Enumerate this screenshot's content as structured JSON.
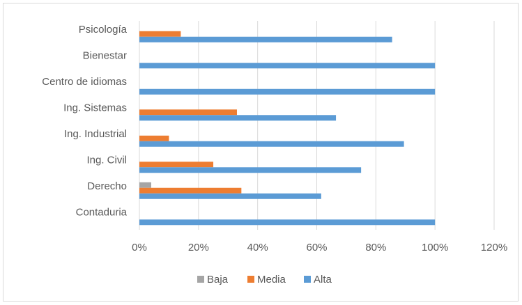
{
  "chart_data": {
    "type": "bar",
    "orientation": "horizontal",
    "categories": [
      "Psicología",
      "Bienestar",
      "Centro de idiomas",
      "Ing. Sistemas",
      "Ing. Industrial",
      "Ing. Civil",
      "Derecho",
      "Contaduria"
    ],
    "series": [
      {
        "name": "Baja",
        "color": "#a5a5a5",
        "values": [
          0,
          0,
          0,
          0,
          0,
          0,
          0.04,
          0
        ]
      },
      {
        "name": "Media",
        "color": "#ed7d31",
        "values": [
          0.14,
          0,
          0,
          0.33,
          0.1,
          0.25,
          0.345,
          0
        ]
      },
      {
        "name": "Alta",
        "color": "#5b9bd5",
        "values": [
          0.855,
          1.0,
          1.0,
          0.665,
          0.895,
          0.75,
          0.615,
          1.0
        ]
      }
    ],
    "x_ticks": [
      "0%",
      "20%",
      "40%",
      "60%",
      "80%",
      "100%",
      "120%"
    ],
    "xlim": [
      0,
      1.2
    ],
    "grid": true,
    "legend_position": "bottom",
    "title": "",
    "xlabel": "",
    "ylabel": ""
  }
}
